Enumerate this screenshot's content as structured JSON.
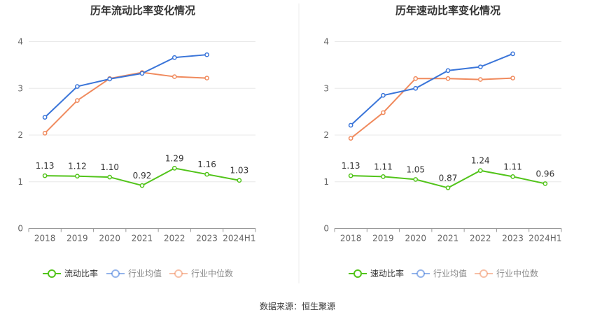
{
  "colors": {
    "primary": "#52c41a",
    "industry_avg": "#3a75d9",
    "industry_median": "#f08a5d",
    "grid": "#e8e8e8",
    "axis": "#666666"
  },
  "source": "数据来源：恒生聚源",
  "chart_data": [
    {
      "type": "line",
      "title": "历年流动比率变化情况",
      "categories": [
        "2018",
        "2019",
        "2020",
        "2021",
        "2022",
        "2023",
        "2024H1"
      ],
      "ylim": [
        0,
        4
      ],
      "yticks": [
        "0",
        "1",
        "2",
        "3",
        "4"
      ],
      "grid": true,
      "legend_position": "bottom",
      "series": [
        {
          "name": "流动比率",
          "values": [
            1.13,
            1.12,
            1.1,
            0.92,
            1.29,
            1.16,
            1.03
          ],
          "labels": [
            "1.13",
            "1.12",
            "1.10",
            "0.92",
            "1.29",
            "1.16",
            "1.03"
          ],
          "color": "#52c41a"
        },
        {
          "name": "行业均值",
          "values": [
            2.38,
            3.04,
            3.2,
            3.32,
            3.66,
            3.72,
            null
          ],
          "color": "#3a75d9"
        },
        {
          "name": "行业中位数",
          "values": [
            2.04,
            2.74,
            3.21,
            3.34,
            3.25,
            3.22,
            null
          ],
          "color": "#f08a5d"
        }
      ]
    },
    {
      "type": "line",
      "title": "历年速动比率变化情况",
      "categories": [
        "2018",
        "2019",
        "2020",
        "2021",
        "2022",
        "2023",
        "2024H1"
      ],
      "ylim": [
        0,
        4
      ],
      "yticks": [
        "0",
        "1",
        "2",
        "3",
        "4"
      ],
      "grid": true,
      "legend_position": "bottom",
      "series": [
        {
          "name": "速动比率",
          "values": [
            1.13,
            1.11,
            1.05,
            0.87,
            1.24,
            1.11,
            0.96
          ],
          "labels": [
            "1.13",
            "1.11",
            "1.05",
            "0.87",
            "1.24",
            "1.11",
            "0.96"
          ],
          "color": "#52c41a"
        },
        {
          "name": "行业均值",
          "values": [
            2.21,
            2.85,
            3.0,
            3.38,
            3.46,
            3.74,
            null
          ],
          "color": "#3a75d9"
        },
        {
          "name": "行业中位数",
          "values": [
            1.93,
            2.48,
            3.21,
            3.21,
            3.19,
            3.22,
            null
          ],
          "color": "#f08a5d"
        }
      ]
    }
  ]
}
